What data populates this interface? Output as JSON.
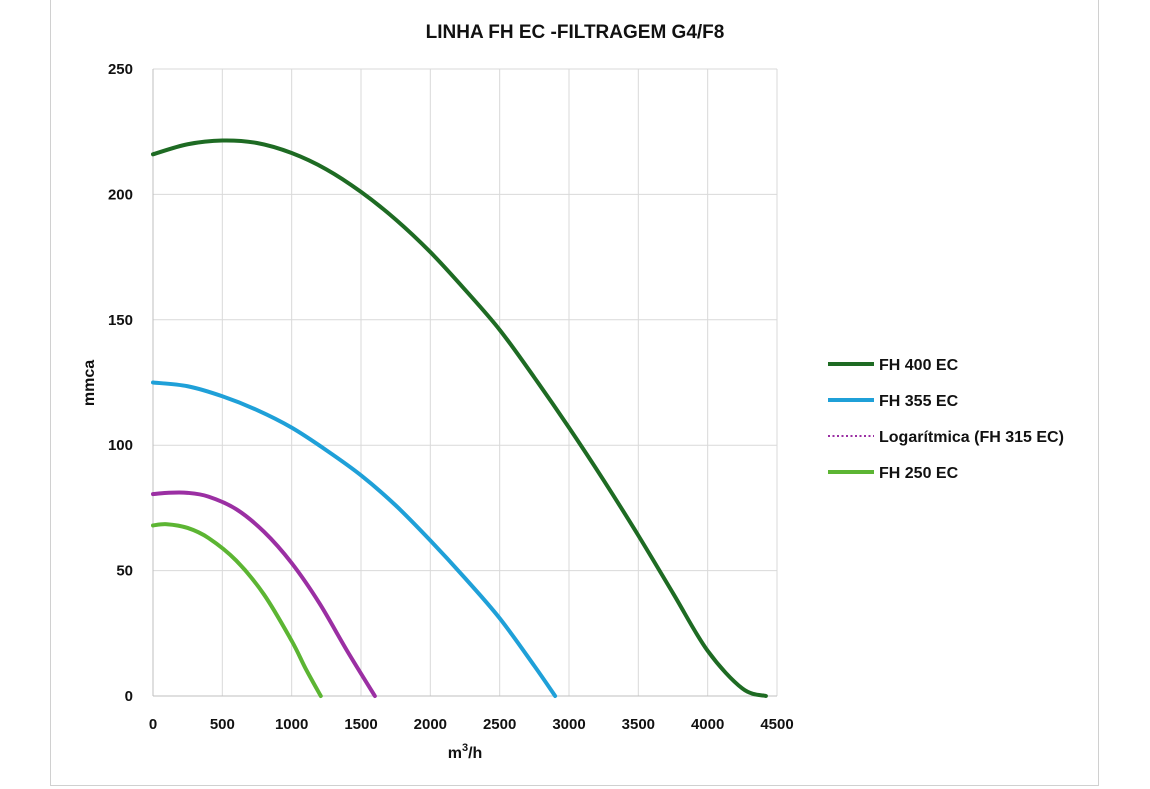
{
  "chart_data": {
    "type": "line",
    "title": "LINHA FH EC  -FILTRAGEM G4/F8",
    "xlabel_base": "m",
    "xlabel_sup": "3",
    "xlabel_tail": "/h",
    "ylabel": "mmca",
    "xlim": [
      0,
      4500
    ],
    "ylim": [
      0,
      250
    ],
    "x_ticks": [
      "0",
      "500",
      "1000",
      "1500",
      "2000",
      "2500",
      "3000",
      "3500",
      "4000",
      "4500"
    ],
    "y_ticks": [
      "0",
      "50",
      "100",
      "150",
      "200",
      "250"
    ],
    "grid": true,
    "legend_position": "right",
    "series": [
      {
        "name": "FH 400 EC",
        "color": "#1e6b23",
        "style": "solid",
        "x": [
          0,
          250,
          500,
          750,
          1000,
          1250,
          1500,
          1750,
          2000,
          2250,
          2500,
          2750,
          3000,
          3250,
          3500,
          3750,
          4000,
          4250,
          4420
        ],
        "y": [
          216,
          220,
          221.5,
          220.5,
          216.5,
          210,
          201,
          190,
          177,
          162,
          146,
          127,
          107,
          86,
          64,
          41,
          18,
          3,
          0
        ]
      },
      {
        "name": "FH 355 EC",
        "color": "#1fa0d8",
        "style": "solid",
        "x": [
          0,
          250,
          500,
          750,
          1000,
          1250,
          1500,
          1750,
          2000,
          2250,
          2500,
          2750,
          2900
        ],
        "y": [
          125,
          123.5,
          119.5,
          114,
          107,
          98,
          88,
          76,
          62,
          47,
          31,
          12,
          0
        ]
      },
      {
        "name": "Logarítmica (FH 315 EC)",
        "color": "#9b2fa3",
        "style": "solid",
        "x": [
          0,
          100,
          250,
          400,
          600,
          800,
          1000,
          1200,
          1400,
          1600
        ],
        "y": [
          80.5,
          81,
          81,
          79.5,
          74.5,
          65.5,
          53,
          37,
          18,
          0
        ]
      },
      {
        "name": "FH 250 EC",
        "color": "#5cb533",
        "style": "solid",
        "x": [
          0,
          100,
          250,
          400,
          600,
          800,
          1000,
          1100,
          1210
        ],
        "y": [
          68,
          68.5,
          67,
          63,
          54,
          40.5,
          22,
          11,
          0
        ]
      }
    ],
    "legend": [
      {
        "label": "FH 400 EC",
        "color": "#1e6b23",
        "style": "solid"
      },
      {
        "label": "FH 355 EC",
        "color": "#1fa0d8",
        "style": "solid"
      },
      {
        "label": "Logarítmica (FH 315 EC)",
        "color": "#9b2fa3",
        "style": "dotted"
      },
      {
        "label": "FH 250 EC",
        "color": "#5cb533",
        "style": "solid"
      }
    ]
  }
}
